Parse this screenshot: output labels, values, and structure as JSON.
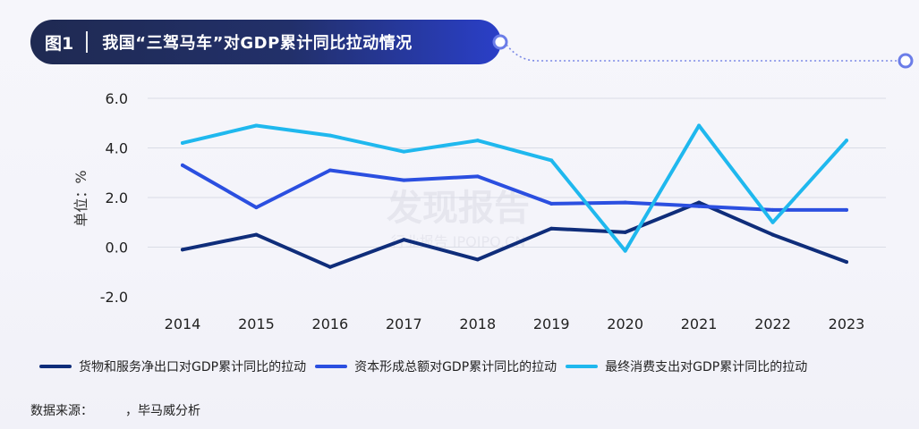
{
  "header": {
    "fig_label": "图1",
    "title": "我国“三驾马车”对GDP累计同比拉动情况"
  },
  "watermark": {
    "brand": "发现报告",
    "sub": "行业报告 IPOIPO.CN"
  },
  "source": {
    "label": "数据来源：",
    "text": "，毕马威分析"
  },
  "colors": {
    "series1": "#0f2d7a",
    "series2": "#2b4fe0",
    "series3": "#1fb8ee",
    "title_bg": "#1f2a52"
  },
  "chart_data": {
    "type": "line",
    "title": "",
    "xlabel": "",
    "ylabel": "单位：%",
    "ylim": [
      -2.0,
      6.0
    ],
    "yticks": [
      "6.0",
      "4.0",
      "2.0",
      "0.0",
      "-2.0"
    ],
    "grid": "horizontal",
    "legend_position": "bottom",
    "categories": [
      "2014",
      "2015",
      "2016",
      "2017",
      "2018",
      "2019",
      "2020",
      "2021",
      "2022",
      "2023"
    ],
    "series": [
      {
        "name": "货物和服务净出口对GDP累计同比的拉动",
        "color": "#0f2d7a",
        "values": [
          -0.1,
          0.5,
          -0.8,
          0.3,
          -0.5,
          0.75,
          0.6,
          1.8,
          0.5,
          -0.6
        ]
      },
      {
        "name": "资本形成总额对GDP累计同比的拉动",
        "color": "#2b4fe0",
        "values": [
          3.3,
          1.6,
          3.1,
          2.7,
          2.85,
          1.75,
          1.8,
          1.65,
          1.5,
          1.5
        ]
      },
      {
        "name": "最终消费支出对GDP累计同比的拉动",
        "color": "#1fb8ee",
        "values": [
          4.2,
          4.9,
          4.5,
          3.85,
          4.3,
          3.5,
          -0.15,
          4.9,
          1.0,
          4.3
        ]
      }
    ]
  }
}
